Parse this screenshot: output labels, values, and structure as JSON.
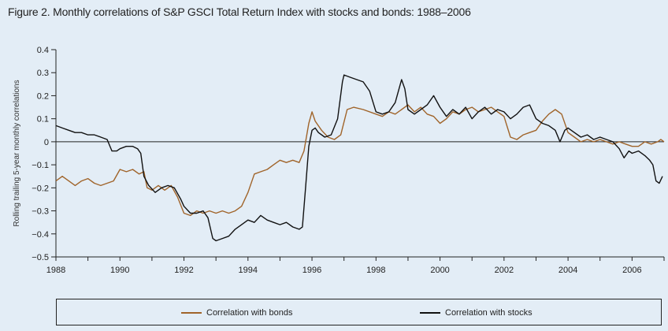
{
  "title": "Figure 2. Monthly correlations of S&P GSCI Total Return Index with stocks and bonds: 1988–2006",
  "colors": {
    "background": "#e3edf6",
    "bonds": "#a0642a",
    "stocks": "#111111",
    "axis": "#222222"
  },
  "chart_data": {
    "type": "line",
    "title": "Figure 2. Monthly correlations of S&P GSCI Total Return Index with stocks and bonds: 1988–2006",
    "xlabel": "",
    "ylabel": "Rolling trailing 5-year monthly correlations",
    "xlim": [
      1988,
      2007
    ],
    "ylim": [
      -0.5,
      0.4
    ],
    "x_ticks": [
      "1988",
      "1990",
      "1992",
      "1994",
      "1996",
      "1998",
      "2000",
      "2002",
      "2004",
      "2006"
    ],
    "y_ticks": [
      "0.4",
      "0.3",
      "0.2",
      "0.1",
      "0",
      "−0.1",
      "−0.2",
      "−0.3",
      "−0.4",
      "−0.5"
    ],
    "zero_line": true,
    "grid": false,
    "legend_position": "bottom",
    "series": [
      {
        "name": "Correlation with bonds",
        "color": "#a0642a",
        "points": [
          [
            1988.0,
            -0.17
          ],
          [
            1988.2,
            -0.15
          ],
          [
            1988.4,
            -0.17
          ],
          [
            1988.6,
            -0.19
          ],
          [
            1988.8,
            -0.17
          ],
          [
            1989.0,
            -0.16
          ],
          [
            1989.2,
            -0.18
          ],
          [
            1989.4,
            -0.19
          ],
          [
            1989.6,
            -0.18
          ],
          [
            1989.8,
            -0.17
          ],
          [
            1990.0,
            -0.12
          ],
          [
            1990.2,
            -0.13
          ],
          [
            1990.4,
            -0.12
          ],
          [
            1990.6,
            -0.14
          ],
          [
            1990.75,
            -0.13
          ],
          [
            1990.85,
            -0.2
          ],
          [
            1991.0,
            -0.21
          ],
          [
            1991.2,
            -0.19
          ],
          [
            1991.4,
            -0.21
          ],
          [
            1991.6,
            -0.19
          ],
          [
            1991.8,
            -0.24
          ],
          [
            1992.0,
            -0.31
          ],
          [
            1992.2,
            -0.32
          ],
          [
            1992.4,
            -0.3
          ],
          [
            1992.6,
            -0.31
          ],
          [
            1992.8,
            -0.3
          ],
          [
            1993.0,
            -0.31
          ],
          [
            1993.2,
            -0.3
          ],
          [
            1993.4,
            -0.31
          ],
          [
            1993.6,
            -0.3
          ],
          [
            1993.8,
            -0.28
          ],
          [
            1994.0,
            -0.22
          ],
          [
            1994.2,
            -0.14
          ],
          [
            1994.4,
            -0.13
          ],
          [
            1994.6,
            -0.12
          ],
          [
            1994.8,
            -0.1
          ],
          [
            1995.0,
            -0.08
          ],
          [
            1995.2,
            -0.09
          ],
          [
            1995.4,
            -0.08
          ],
          [
            1995.6,
            -0.09
          ],
          [
            1995.75,
            -0.04
          ],
          [
            1995.9,
            0.08
          ],
          [
            1996.0,
            0.13
          ],
          [
            1996.1,
            0.09
          ],
          [
            1996.3,
            0.05
          ],
          [
            1996.5,
            0.02
          ],
          [
            1996.7,
            0.01
          ],
          [
            1996.9,
            0.03
          ],
          [
            1997.1,
            0.14
          ],
          [
            1997.3,
            0.15
          ],
          [
            1997.6,
            0.14
          ],
          [
            1998.0,
            0.12
          ],
          [
            1998.2,
            0.11
          ],
          [
            1998.4,
            0.13
          ],
          [
            1998.6,
            0.12
          ],
          [
            1998.8,
            0.14
          ],
          [
            1999.0,
            0.16
          ],
          [
            1999.2,
            0.13
          ],
          [
            1999.4,
            0.15
          ],
          [
            1999.6,
            0.12
          ],
          [
            1999.8,
            0.11
          ],
          [
            2000.0,
            0.08
          ],
          [
            2000.2,
            0.1
          ],
          [
            2000.4,
            0.13
          ],
          [
            2000.6,
            0.12
          ],
          [
            2000.8,
            0.14
          ],
          [
            2001.0,
            0.15
          ],
          [
            2001.2,
            0.13
          ],
          [
            2001.4,
            0.14
          ],
          [
            2001.6,
            0.15
          ],
          [
            2001.8,
            0.13
          ],
          [
            2002.0,
            0.11
          ],
          [
            2002.2,
            0.02
          ],
          [
            2002.4,
            0.01
          ],
          [
            2002.6,
            0.03
          ],
          [
            2002.8,
            0.04
          ],
          [
            2003.0,
            0.05
          ],
          [
            2003.2,
            0.09
          ],
          [
            2003.4,
            0.12
          ],
          [
            2003.6,
            0.14
          ],
          [
            2003.8,
            0.12
          ],
          [
            2004.0,
            0.04
          ],
          [
            2004.2,
            0.02
          ],
          [
            2004.4,
            0.0
          ],
          [
            2004.6,
            0.01
          ],
          [
            2004.8,
            0.0
          ],
          [
            2005.0,
            0.01
          ],
          [
            2005.2,
            0.0
          ],
          [
            2005.4,
            -0.01
          ],
          [
            2005.6,
            0.0
          ],
          [
            2005.8,
            -0.01
          ],
          [
            2006.0,
            -0.02
          ],
          [
            2006.2,
            -0.02
          ],
          [
            2006.4,
            0.0
          ],
          [
            2006.6,
            -0.01
          ],
          [
            2006.8,
            0.0
          ],
          [
            2006.9,
            0.01
          ],
          [
            2007.0,
            0.0
          ]
        ]
      },
      {
        "name": "Correlation with stocks",
        "color": "#111111",
        "points": [
          [
            1988.0,
            0.07
          ],
          [
            1988.2,
            0.06
          ],
          [
            1988.4,
            0.05
          ],
          [
            1988.6,
            0.04
          ],
          [
            1988.8,
            0.04
          ],
          [
            1989.0,
            0.03
          ],
          [
            1989.2,
            0.03
          ],
          [
            1989.4,
            0.02
          ],
          [
            1989.6,
            0.01
          ],
          [
            1989.75,
            -0.04
          ],
          [
            1989.9,
            -0.04
          ],
          [
            1990.0,
            -0.03
          ],
          [
            1990.2,
            -0.02
          ],
          [
            1990.4,
            -0.02
          ],
          [
            1990.55,
            -0.03
          ],
          [
            1990.65,
            -0.05
          ],
          [
            1990.75,
            -0.15
          ],
          [
            1990.9,
            -0.19
          ],
          [
            1991.1,
            -0.22
          ],
          [
            1991.3,
            -0.2
          ],
          [
            1991.5,
            -0.19
          ],
          [
            1991.7,
            -0.2
          ],
          [
            1991.9,
            -0.25
          ],
          [
            1992.0,
            -0.28
          ],
          [
            1992.2,
            -0.31
          ],
          [
            1992.4,
            -0.31
          ],
          [
            1992.6,
            -0.3
          ],
          [
            1992.75,
            -0.33
          ],
          [
            1992.9,
            -0.42
          ],
          [
            1993.0,
            -0.43
          ],
          [
            1993.2,
            -0.42
          ],
          [
            1993.4,
            -0.41
          ],
          [
            1993.6,
            -0.38
          ],
          [
            1993.8,
            -0.36
          ],
          [
            1994.0,
            -0.34
          ],
          [
            1994.2,
            -0.35
          ],
          [
            1994.4,
            -0.32
          ],
          [
            1994.6,
            -0.34
          ],
          [
            1994.8,
            -0.35
          ],
          [
            1995.0,
            -0.36
          ],
          [
            1995.2,
            -0.35
          ],
          [
            1995.4,
            -0.37
          ],
          [
            1995.6,
            -0.38
          ],
          [
            1995.7,
            -0.37
          ],
          [
            1995.8,
            -0.2
          ],
          [
            1995.9,
            -0.02
          ],
          [
            1996.0,
            0.05
          ],
          [
            1996.1,
            0.06
          ],
          [
            1996.2,
            0.04
          ],
          [
            1996.4,
            0.02
          ],
          [
            1996.6,
            0.03
          ],
          [
            1996.8,
            0.1
          ],
          [
            1996.95,
            0.26
          ],
          [
            1997.0,
            0.29
          ],
          [
            1997.2,
            0.28
          ],
          [
            1997.4,
            0.27
          ],
          [
            1997.6,
            0.26
          ],
          [
            1997.8,
            0.22
          ],
          [
            1998.0,
            0.13
          ],
          [
            1998.2,
            0.12
          ],
          [
            1998.4,
            0.13
          ],
          [
            1998.6,
            0.17
          ],
          [
            1998.8,
            0.27
          ],
          [
            1998.9,
            0.23
          ],
          [
            1999.0,
            0.14
          ],
          [
            1999.2,
            0.12
          ],
          [
            1999.4,
            0.14
          ],
          [
            1999.6,
            0.16
          ],
          [
            1999.8,
            0.2
          ],
          [
            2000.0,
            0.15
          ],
          [
            2000.2,
            0.11
          ],
          [
            2000.4,
            0.14
          ],
          [
            2000.6,
            0.12
          ],
          [
            2000.8,
            0.15
          ],
          [
            2001.0,
            0.1
          ],
          [
            2001.2,
            0.13
          ],
          [
            2001.4,
            0.15
          ],
          [
            2001.6,
            0.12
          ],
          [
            2001.8,
            0.14
          ],
          [
            2002.0,
            0.13
          ],
          [
            2002.2,
            0.1
          ],
          [
            2002.4,
            0.12
          ],
          [
            2002.6,
            0.15
          ],
          [
            2002.8,
            0.16
          ],
          [
            2003.0,
            0.1
          ],
          [
            2003.2,
            0.08
          ],
          [
            2003.4,
            0.07
          ],
          [
            2003.6,
            0.05
          ],
          [
            2003.75,
            0.0
          ],
          [
            2003.9,
            0.05
          ],
          [
            2004.0,
            0.06
          ],
          [
            2004.2,
            0.04
          ],
          [
            2004.4,
            0.02
          ],
          [
            2004.6,
            0.03
          ],
          [
            2004.8,
            0.01
          ],
          [
            2005.0,
            0.02
          ],
          [
            2005.2,
            0.01
          ],
          [
            2005.4,
            0.0
          ],
          [
            2005.6,
            -0.03
          ],
          [
            2005.75,
            -0.07
          ],
          [
            2005.9,
            -0.04
          ],
          [
            2006.0,
            -0.05
          ],
          [
            2006.2,
            -0.04
          ],
          [
            2006.4,
            -0.06
          ],
          [
            2006.55,
            -0.08
          ],
          [
            2006.65,
            -0.1
          ],
          [
            2006.75,
            -0.17
          ],
          [
            2006.85,
            -0.18
          ],
          [
            2006.95,
            -0.15
          ]
        ]
      }
    ]
  }
}
